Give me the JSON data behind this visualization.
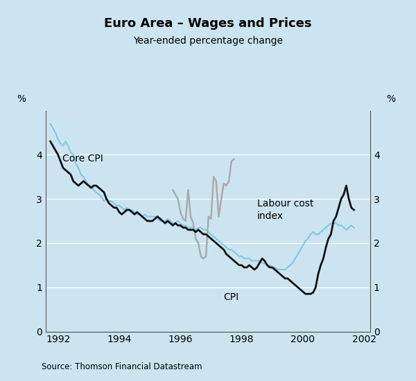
{
  "title": "Euro Area – Wages and Prices",
  "subtitle": "Year-ended percentage change",
  "source": "Source: Thomson Financial Datastream",
  "background_color": "#cce4f0",
  "ylim": [
    0,
    5
  ],
  "yticks": [
    0,
    1,
    2,
    3,
    4
  ],
  "core_cpi_color": "#7ec8e3",
  "cpi_color": "#111111",
  "labour_color": "#aaaaaa",
  "core_cpi_lw": 1.5,
  "cpi_lw": 2.0,
  "labour_lw": 1.8,
  "xlim": [
    1991.6,
    2002.2
  ],
  "xticks": [
    1992,
    1994,
    1996,
    1998,
    2000,
    2002
  ],
  "xticklabels": [
    "1992",
    "1994",
    "1996",
    "1998",
    "2000",
    "2002"
  ],
  "core_cpi_start": 1991.75,
  "core_cpi_values": [
    4.7,
    4.6,
    4.5,
    4.35,
    4.25,
    4.2,
    4.3,
    4.2,
    4.05,
    4.0,
    3.8,
    3.7,
    3.55,
    3.5,
    3.4,
    3.3,
    3.3,
    3.2,
    3.15,
    3.1,
    3.05,
    2.95,
    3.0,
    2.95,
    2.95,
    2.9,
    2.85,
    2.85,
    2.8,
    2.75,
    2.8,
    2.75,
    2.75,
    2.7,
    2.65,
    2.65,
    2.6,
    2.65,
    2.6,
    2.6,
    2.6,
    2.6,
    2.55,
    2.5,
    2.5,
    2.5,
    2.55,
    2.5,
    2.45,
    2.45,
    2.5,
    2.45,
    2.4,
    2.4,
    2.35,
    2.35,
    2.35,
    2.3,
    2.35,
    2.35,
    2.3,
    2.3,
    2.25,
    2.2,
    2.15,
    2.1,
    2.05,
    2.0,
    1.95,
    1.9,
    1.85,
    1.85,
    1.8,
    1.75,
    1.7,
    1.7,
    1.65,
    1.65,
    1.65,
    1.6,
    1.6,
    1.6,
    1.6,
    1.55,
    1.55,
    1.5,
    1.5,
    1.45,
    1.45,
    1.4,
    1.4,
    1.4,
    1.4,
    1.45,
    1.5,
    1.55,
    1.65,
    1.75,
    1.85,
    1.95,
    2.05,
    2.1,
    2.2,
    2.25,
    2.2,
    2.2,
    2.25,
    2.3,
    2.35,
    2.4,
    2.45,
    2.45,
    2.45,
    2.4,
    2.4,
    2.35,
    2.3,
    2.35,
    2.4,
    2.35
  ],
  "cpi_start": 1991.75,
  "cpi_values": [
    4.3,
    4.2,
    4.1,
    4.0,
    3.85,
    3.7,
    3.65,
    3.6,
    3.55,
    3.4,
    3.35,
    3.3,
    3.35,
    3.4,
    3.35,
    3.3,
    3.25,
    3.3,
    3.3,
    3.25,
    3.2,
    3.15,
    3.0,
    2.9,
    2.85,
    2.8,
    2.8,
    2.7,
    2.65,
    2.7,
    2.75,
    2.75,
    2.7,
    2.65,
    2.7,
    2.65,
    2.6,
    2.55,
    2.5,
    2.5,
    2.5,
    2.55,
    2.6,
    2.55,
    2.5,
    2.45,
    2.5,
    2.45,
    2.4,
    2.45,
    2.4,
    2.4,
    2.35,
    2.35,
    2.3,
    2.3,
    2.3,
    2.25,
    2.3,
    2.25,
    2.2,
    2.2,
    2.15,
    2.1,
    2.05,
    2.0,
    1.95,
    1.9,
    1.85,
    1.75,
    1.7,
    1.65,
    1.6,
    1.55,
    1.5,
    1.5,
    1.45,
    1.45,
    1.5,
    1.45,
    1.4,
    1.45,
    1.55,
    1.65,
    1.6,
    1.5,
    1.45,
    1.45,
    1.4,
    1.35,
    1.3,
    1.25,
    1.2,
    1.2,
    1.15,
    1.1,
    1.05,
    1.0,
    0.95,
    0.9,
    0.85,
    0.85,
    0.85,
    0.88,
    1.0,
    1.3,
    1.5,
    1.65,
    1.9,
    2.1,
    2.2,
    2.5,
    2.6,
    2.8,
    3.0,
    3.1,
    3.3,
    3.0,
    2.8,
    2.75
  ],
  "labour_start": 1995.75,
  "labour_values": [
    3.2,
    3.1,
    3.0,
    2.7,
    2.55,
    2.5,
    3.2,
    2.6,
    2.45,
    2.1,
    2.0,
    1.7,
    1.65,
    1.7,
    2.6,
    2.55,
    3.5,
    3.4,
    2.6,
    3.0,
    3.35,
    3.3,
    3.4,
    3.85,
    3.9
  ]
}
